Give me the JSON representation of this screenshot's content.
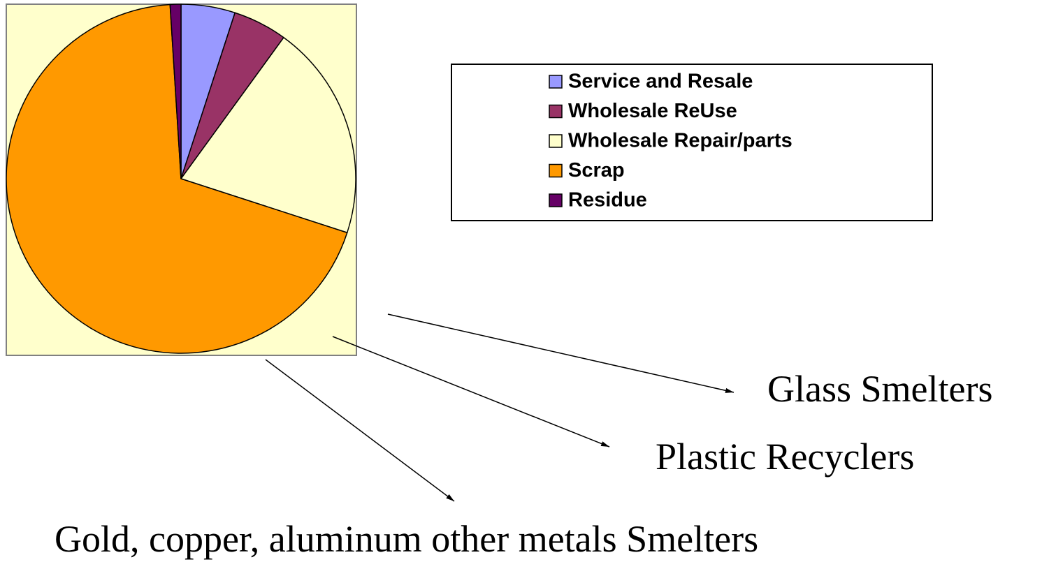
{
  "chart_data": {
    "type": "pie",
    "categories": [
      "Service and Resale",
      "Wholesale ReUse",
      "Wholesale Repair/parts",
      "Scrap",
      "Residue"
    ],
    "values": [
      5,
      5,
      20,
      69,
      1
    ],
    "colors": [
      "#9999ff",
      "#993366",
      "#ffffcc",
      "#ff9900",
      "#660066"
    ],
    "annotations": [
      "Glass Smelters",
      "Plastic Recyclers",
      "Gold, copper, aluminum other metals Smelters"
    ]
  }
}
